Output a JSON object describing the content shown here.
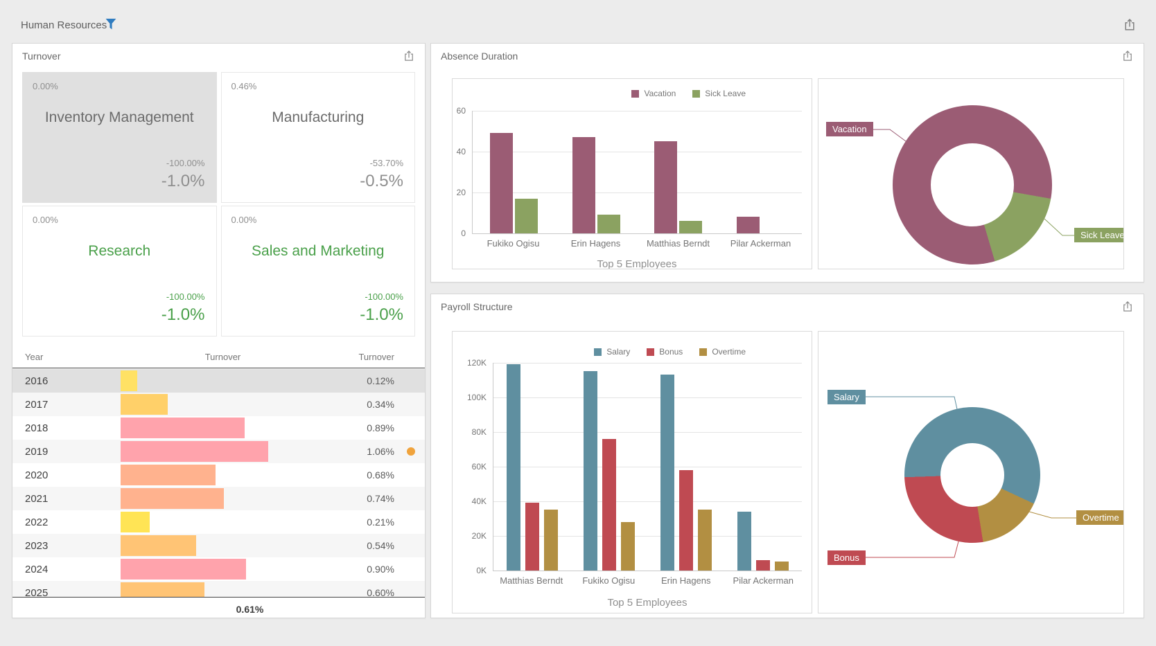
{
  "header": {
    "title": "Human Resources"
  },
  "panels": {
    "turnover": {
      "title": "Turnover",
      "cards": [
        {
          "top_value": "0.00%",
          "title": "Inventory Management",
          "change_percent": "-100.00%",
          "change": "-1.0%",
          "style": "gray",
          "selected": true
        },
        {
          "top_value": "0.46%",
          "title": "Manufacturing",
          "change_percent": "-53.70%",
          "change": "-0.5%",
          "style": "gray",
          "selected": false
        },
        {
          "top_value": "0.00%",
          "title": "Research",
          "change_percent": "-100.00%",
          "change": "-1.0%",
          "style": "green",
          "selected": false
        },
        {
          "top_value": "0.00%",
          "title": "Sales and Marketing",
          "change_percent": "-100.00%",
          "change": "-1.0%",
          "style": "green",
          "selected": false
        }
      ],
      "table": {
        "columns": [
          "Year",
          "Turnover",
          "Turnover"
        ],
        "max_value": 1.06,
        "rows": [
          {
            "year": "2016",
            "value": 0.12,
            "label": "0.12%",
            "bar_color": "#ffe164",
            "selected": true
          },
          {
            "year": "2017",
            "value": 0.34,
            "label": "0.34%",
            "bar_color": "#ffd069"
          },
          {
            "year": "2018",
            "value": 0.89,
            "label": "0.89%",
            "bar_color": "#ffa3ac"
          },
          {
            "year": "2019",
            "value": 1.06,
            "label": "1.06%",
            "bar_color": "#ffa3ac",
            "marker_color": "#f0a33c"
          },
          {
            "year": "2020",
            "value": 0.68,
            "label": "0.68%",
            "bar_color": "#ffb28e"
          },
          {
            "year": "2021",
            "value": 0.74,
            "label": "0.74%",
            "bar_color": "#ffb28e"
          },
          {
            "year": "2022",
            "value": 0.21,
            "label": "0.21%",
            "bar_color": "#ffe455"
          },
          {
            "year": "2023",
            "value": 0.54,
            "label": "0.54%",
            "bar_color": "#ffc475"
          },
          {
            "year": "2024",
            "value": 0.9,
            "label": "0.90%",
            "bar_color": "#ffa3ac"
          },
          {
            "year": "2025",
            "value": 0.6,
            "label": "0.60%",
            "bar_color": "#ffc475"
          }
        ],
        "total": "0.61%"
      }
    },
    "absence": {
      "title": "Absence Duration"
    },
    "payroll": {
      "title": "Payroll Structure"
    }
  },
  "chart_data": [
    {
      "id": "absence_bar",
      "type": "bar",
      "panel": "Absence Duration",
      "categories": [
        "Fukiko Ogisu",
        "Erin Hagens",
        "Matthias Berndt",
        "Pilar Ackerman"
      ],
      "series": [
        {
          "name": "Vacation",
          "color": "#9b5c74",
          "values": [
            49,
            47,
            45,
            8
          ]
        },
        {
          "name": "Sick Leave",
          "color": "#8ba261",
          "values": [
            17,
            9,
            6,
            0
          ]
        }
      ],
      "xlabel": "Top 5 Employees",
      "ylim": [
        0,
        60
      ],
      "yticks": [
        {
          "value": 0,
          "label": "0"
        },
        {
          "value": 20,
          "label": "20"
        },
        {
          "value": 40,
          "label": "40"
        },
        {
          "value": 60,
          "label": "60"
        }
      ],
      "legend_position": "top-right",
      "grid": true
    },
    {
      "id": "absence_donut",
      "type": "pie",
      "panel": "Absence Duration",
      "start_angle": 100,
      "slices": [
        {
          "label": "Sick Leave",
          "value": 32,
          "color": "#8ba261"
        },
        {
          "label": "Vacation",
          "value": 149,
          "color": "#9b5c74"
        }
      ]
    },
    {
      "id": "payroll_bar",
      "type": "bar",
      "panel": "Payroll Structure",
      "categories": [
        "Matthias Berndt",
        "Fukiko Ogisu",
        "Erin Hagens",
        "Pilar Ackerman"
      ],
      "series": [
        {
          "name": "Salary",
          "color": "#5f8fa0",
          "values": [
            119000,
            115000,
            113000,
            34000
          ]
        },
        {
          "name": "Bonus",
          "color": "#bf4a52",
          "values": [
            39000,
            76000,
            58000,
            6000
          ]
        },
        {
          "name": "Overtime",
          "color": "#b28f42",
          "values": [
            35000,
            28000,
            35000,
            5000
          ]
        }
      ],
      "xlabel": "Top 5 Employees",
      "ylim": [
        0,
        120000
      ],
      "yticks": [
        {
          "value": 0,
          "label": "0K"
        },
        {
          "value": 20000,
          "label": "20K"
        },
        {
          "value": 40000,
          "label": "40K"
        },
        {
          "value": 60000,
          "label": "60K"
        },
        {
          "value": 80000,
          "label": "80K"
        },
        {
          "value": 100000,
          "label": "100K"
        },
        {
          "value": 120000,
          "label": "120K"
        }
      ],
      "legend_position": "top-right",
      "grid": true
    },
    {
      "id": "payroll_donut",
      "type": "pie",
      "panel": "Payroll Structure",
      "start_angle": 115,
      "slices": [
        {
          "label": "Overtime",
          "value": 103000,
          "color": "#b28f42"
        },
        {
          "label": "Bonus",
          "value": 179000,
          "color": "#bf4a52"
        },
        {
          "label": "Salary",
          "value": 381000,
          "color": "#5f8fa0"
        }
      ]
    }
  ]
}
